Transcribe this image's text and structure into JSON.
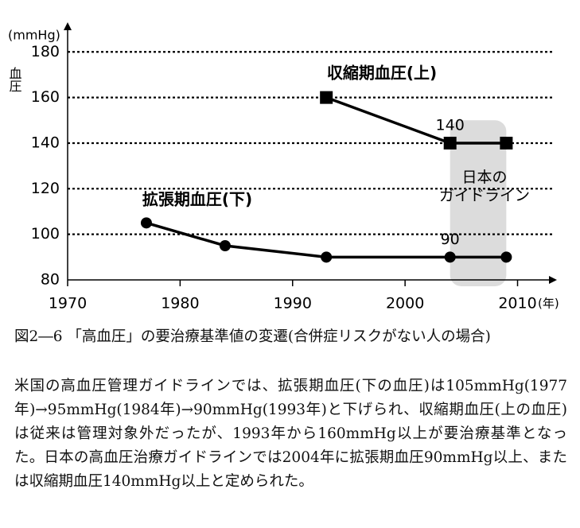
{
  "chart_data": {
    "type": "line",
    "ylabel": "血圧",
    "y_unit": "(mmHg)",
    "x_unit": "(年)",
    "xlim": [
      1970,
      2013.5
    ],
    "xticks": [
      1970,
      1980,
      1990,
      2000,
      2010
    ],
    "ylim": [
      80,
      193
    ],
    "yticks": [
      80,
      100,
      120,
      140,
      160,
      180
    ],
    "grid": true,
    "color": "#000000",
    "series": [
      {
        "name": "収縮期血圧(上)",
        "marker": "square",
        "x": [
          1993,
          2004,
          2009
        ],
        "values": [
          160,
          140,
          140
        ],
        "label_index": 1
      },
      {
        "name": "拡張期血圧(下)",
        "marker": "circle",
        "x": [
          1977,
          1984,
          1993,
          2004,
          2009
        ],
        "values": [
          105,
          95,
          90,
          90,
          90
        ],
        "label_index": 3
      }
    ],
    "band": {
      "lines": [
        "日本の",
        "ガイドライン"
      ],
      "xrange": [
        2004,
        2009
      ],
      "yrange": [
        80,
        150
      ],
      "color": "#dcdcdc"
    }
  },
  "caption": {
    "title": "図2―6 「高血圧」の要治療基準値の変遷(合併症リスクがない人の場合)",
    "body": "米国の高血圧管理ガイドラインでは、拡張期血圧(下の血圧)は105mmHg(1977年)→95mmHg(1984年)→90mmHg(1993年)と下げられ、収縮期血圧(上の血圧)は従来は管理対象外だったが、1993年から160mmHg以上が要治療基準となった。日本の高血圧治療ガイドラインでは2004年に拡張期血圧90mmHg以上、または収縮期血圧140mmHg以上と定められた。"
  }
}
